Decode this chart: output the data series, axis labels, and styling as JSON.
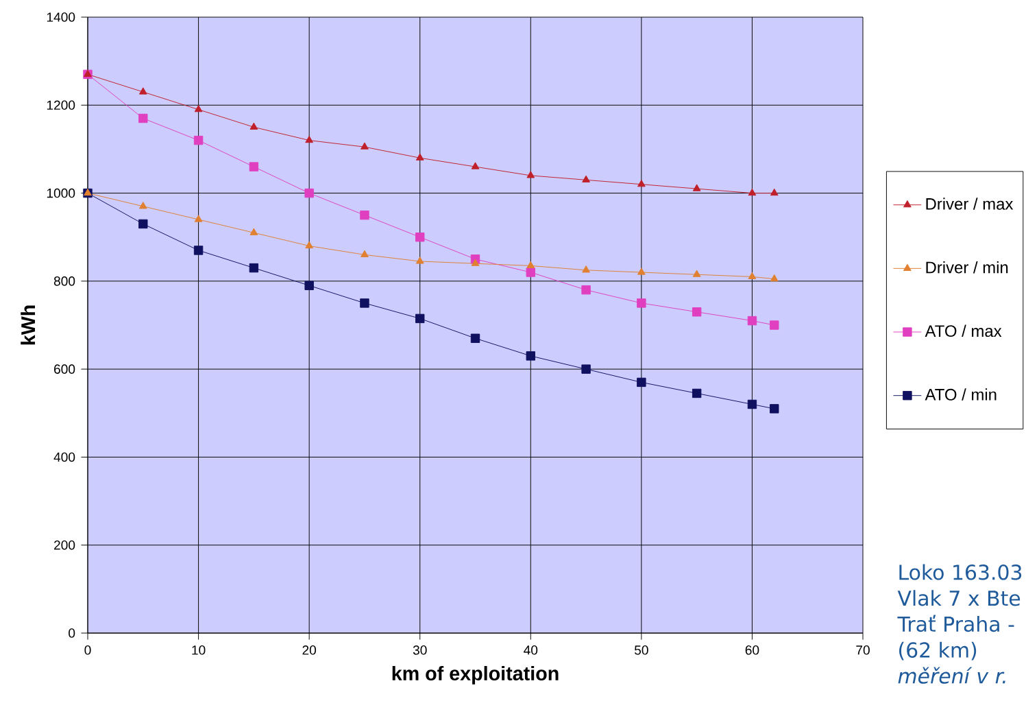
{
  "chart_data": {
    "type": "line",
    "xlabel": "km of exploitation",
    "ylabel": "kWh",
    "x": [
      0,
      5,
      10,
      15,
      20,
      25,
      30,
      35,
      40,
      45,
      50,
      55,
      60,
      62
    ],
    "series": [
      {
        "name": "Driver / max",
        "color": "#c0202a",
        "marker": "triangle",
        "values": [
          1270,
          1230,
          1190,
          1150,
          1120,
          1105,
          1080,
          1060,
          1040,
          1030,
          1020,
          1010,
          1000,
          1000
        ]
      },
      {
        "name": "Driver / min",
        "color": "#e08030",
        "marker": "triangle",
        "values": [
          1000,
          970,
          940,
          910,
          880,
          860,
          845,
          840,
          835,
          825,
          820,
          815,
          810,
          805
        ]
      },
      {
        "name": "ATO / max",
        "color": "#e040c0",
        "marker": "square",
        "values": [
          1270,
          1170,
          1120,
          1060,
          1000,
          950,
          900,
          850,
          820,
          780,
          750,
          730,
          710,
          700
        ]
      },
      {
        "name": "ATO / min",
        "color": "#101060",
        "marker": "square",
        "values": [
          1000,
          930,
          870,
          830,
          790,
          750,
          715,
          670,
          630,
          600,
          570,
          545,
          520,
          510
        ]
      }
    ],
    "xlim": [
      0,
      70
    ],
    "xticks": [
      0,
      10,
      20,
      30,
      40,
      50,
      60,
      70
    ],
    "ylim": [
      0,
      1400
    ],
    "yticks": [
      0,
      200,
      400,
      600,
      800,
      1000,
      1200,
      1400
    ],
    "grid": true,
    "legend": "right",
    "line_style": "solid",
    "annotations": [
      "Loko 163.03",
      "Vlak 7 x Bte",
      "Trať Praha -",
      "(62 km)",
      "*měření v r.*"
    ]
  }
}
